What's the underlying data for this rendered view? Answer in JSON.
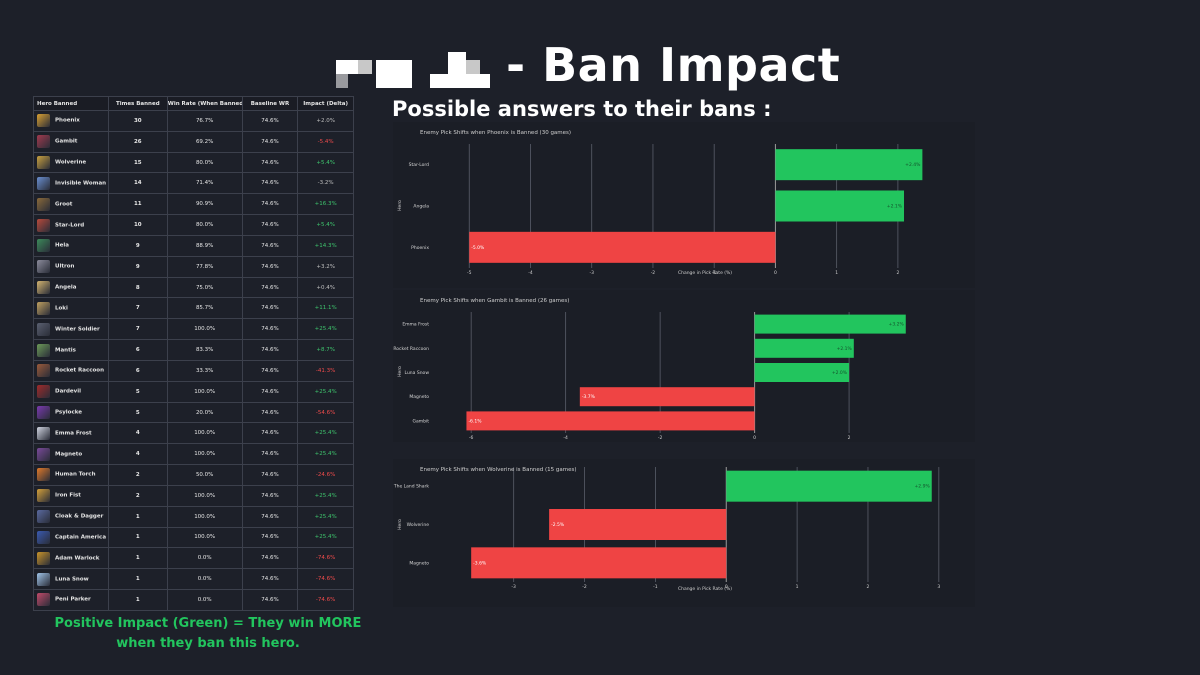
{
  "header": {
    "title": "- Ban Impact",
    "subtitle": "Possible answers to their bans :",
    "logo_icon": "pixel-logo-icon"
  },
  "table": {
    "headers": [
      "Hero Banned",
      "Times Banned",
      "Win Rate (When Banned)",
      "Baseline WR",
      "Impact (Delta)"
    ],
    "rows": [
      {
        "hero": "Phoenix",
        "times": "30",
        "wr": "76.7%",
        "base": "74.6%",
        "impact": "+2.0%",
        "tone": "neu",
        "avatar": "#d8a032"
      },
      {
        "hero": "Gambit",
        "times": "26",
        "wr": "69.2%",
        "base": "74.6%",
        "impact": "-5.4%",
        "tone": "neg",
        "avatar": "#a23a4e"
      },
      {
        "hero": "Wolverine",
        "times": "15",
        "wr": "80.0%",
        "base": "74.6%",
        "impact": "+5.4%",
        "tone": "pos",
        "avatar": "#c9a140"
      },
      {
        "hero": "Invisible Woman",
        "times": "14",
        "wr": "71.4%",
        "base": "74.6%",
        "impact": "-3.2%",
        "tone": "neu",
        "avatar": "#6a8fd0"
      },
      {
        "hero": "Groot",
        "times": "11",
        "wr": "90.9%",
        "base": "74.6%",
        "impact": "+16.3%",
        "tone": "pos",
        "avatar": "#8a6a3a"
      },
      {
        "hero": "Star-Lord",
        "times": "10",
        "wr": "80.0%",
        "base": "74.6%",
        "impact": "+5.4%",
        "tone": "pos",
        "avatar": "#b84a3c"
      },
      {
        "hero": "Hela",
        "times": "9",
        "wr": "88.9%",
        "base": "74.6%",
        "impact": "+14.3%",
        "tone": "pos",
        "avatar": "#3c8a5a"
      },
      {
        "hero": "Ultron",
        "times": "9",
        "wr": "77.8%",
        "base": "74.6%",
        "impact": "+3.2%",
        "tone": "neu",
        "avatar": "#8c8c9c"
      },
      {
        "hero": "Angela",
        "times": "8",
        "wr": "75.0%",
        "base": "74.6%",
        "impact": "+0.4%",
        "tone": "neu",
        "avatar": "#d4b470"
      },
      {
        "hero": "Loki",
        "times": "7",
        "wr": "85.7%",
        "base": "74.6%",
        "impact": "+11.1%",
        "tone": "pos",
        "avatar": "#c0a060"
      },
      {
        "hero": "Winter Soldier",
        "times": "7",
        "wr": "100.0%",
        "base": "74.6%",
        "impact": "+25.4%",
        "tone": "pos",
        "avatar": "#5a6070"
      },
      {
        "hero": "Mantis",
        "times": "6",
        "wr": "83.3%",
        "base": "74.6%",
        "impact": "+8.7%",
        "tone": "pos",
        "avatar": "#6c9a58"
      },
      {
        "hero": "Rocket Raccoon",
        "times": "6",
        "wr": "33.3%",
        "base": "74.6%",
        "impact": "-41.3%",
        "tone": "neg",
        "avatar": "#9a5a3a"
      },
      {
        "hero": "Dardevil",
        "times": "5",
        "wr": "100.0%",
        "base": "74.6%",
        "impact": "+25.4%",
        "tone": "pos",
        "avatar": "#a02a2a"
      },
      {
        "hero": "Psylocke",
        "times": "5",
        "wr": "20.0%",
        "base": "74.6%",
        "impact": "-54.6%",
        "tone": "neg",
        "avatar": "#7a3ab0"
      },
      {
        "hero": "Emma Frost",
        "times": "4",
        "wr": "100.0%",
        "base": "74.6%",
        "impact": "+25.4%",
        "tone": "pos",
        "avatar": "#d0d4e0"
      },
      {
        "hero": "Magneto",
        "times": "4",
        "wr": "100.0%",
        "base": "74.6%",
        "impact": "+25.4%",
        "tone": "pos",
        "avatar": "#7a4a9a"
      },
      {
        "hero": "Human Torch",
        "times": "2",
        "wr": "50.0%",
        "base": "74.6%",
        "impact": "-24.6%",
        "tone": "neg",
        "avatar": "#e07a2a"
      },
      {
        "hero": "Iron Fist",
        "times": "2",
        "wr": "100.0%",
        "base": "74.6%",
        "impact": "+25.4%",
        "tone": "pos",
        "avatar": "#d4a03a"
      },
      {
        "hero": "Cloak & Dagger",
        "times": "1",
        "wr": "100.0%",
        "base": "74.6%",
        "impact": "+25.4%",
        "tone": "pos",
        "avatar": "#5a6aa0"
      },
      {
        "hero": "Captain America",
        "times": "1",
        "wr": "100.0%",
        "base": "74.6%",
        "impact": "+25.4%",
        "tone": "pos",
        "avatar": "#3a5ab0"
      },
      {
        "hero": "Adam Warlock",
        "times": "1",
        "wr": "0.0%",
        "base": "74.6%",
        "impact": "-74.6%",
        "tone": "neg",
        "avatar": "#c8942a"
      },
      {
        "hero": "Luna Snow",
        "times": "1",
        "wr": "0.0%",
        "base": "74.6%",
        "impact": "-74.6%",
        "tone": "neg",
        "avatar": "#a0c4e8"
      },
      {
        "hero": "Peni Parker",
        "times": "1",
        "wr": "0.0%",
        "base": "74.6%",
        "impact": "-74.6%",
        "tone": "neg",
        "avatar": "#c04a6a"
      }
    ]
  },
  "footer_note": "Positive Impact (Green) = They win MORE when they ban this hero.",
  "colors": {
    "positive": "#22c55e",
    "negative": "#ef4444",
    "background": "#1d2029",
    "text": "#ffffff"
  },
  "chart_data": [
    {
      "type": "bar",
      "orientation": "horizontal",
      "title": "Enemy Pick Shifts when Phoenix is Banned (30 games)",
      "xlabel": "Change in Pick Rate (%)",
      "ylabel": "Hero",
      "categories": [
        "Star-Lord",
        "Angela",
        "Phoenix"
      ],
      "values": [
        2.4,
        2.1,
        -5.0
      ],
      "labels": [
        "+2.4%",
        "+2.1%",
        "-5.0%"
      ],
      "xlim": [
        -5.2,
        2.9
      ],
      "xticks": [
        -5,
        -4,
        -3,
        -2,
        -1,
        0,
        1,
        2
      ],
      "grid": true
    },
    {
      "type": "bar",
      "orientation": "horizontal",
      "title": "Enemy Pick Shifts when Gambit is Banned (26 games)",
      "xlabel": "",
      "ylabel": "Hero",
      "categories": [
        "Emma Frost",
        "Rocket Raccoon",
        "Luna Snow",
        "Magneto",
        "Gambit"
      ],
      "values": [
        3.2,
        2.1,
        2.0,
        -3.7,
        -6.1
      ],
      "labels": [
        "+3.2%",
        "+2.1%",
        "+2.0%",
        "-3.7%",
        "-6.1%"
      ],
      "xlim": [
        -6.3,
        4.2
      ],
      "xticks": [
        -6,
        -4,
        -2,
        0,
        2
      ],
      "grid": true
    },
    {
      "type": "bar",
      "orientation": "horizontal",
      "title": "Enemy Pick Shifts when Wolverine is Banned (15 games)",
      "xlabel": "Change in Pick Rate (%)",
      "ylabel": "Hero",
      "categories": [
        "Jeff The Land Shark",
        "Wolverine",
        "Magneto"
      ],
      "values": [
        2.9,
        -2.5,
        -3.6
      ],
      "labels": [
        "+2.9%",
        "-2.5%",
        "-3.6%"
      ],
      "xlim": [
        -3.8,
        3.2
      ],
      "xticks": [
        -3,
        -2,
        -1,
        0,
        1,
        2,
        3
      ],
      "grid": true
    }
  ]
}
